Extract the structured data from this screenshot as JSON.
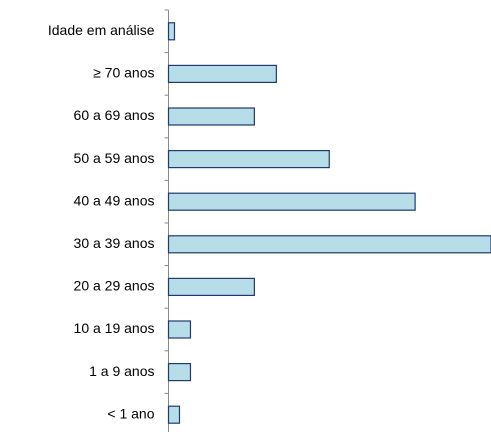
{
  "chart_data": {
    "type": "hbar",
    "categories": [
      "Idade em análise",
      "≥ 70 anos",
      "60 a 69 anos",
      "50 a 59 anos",
      "40 a 49 anos",
      "30 a 39 anos",
      "20 a 29 anos",
      "10 a 19 anos",
      "1 a 9 anos",
      "< 1 ano"
    ],
    "values": [
      6,
      108,
      86,
      161,
      247,
      323,
      86,
      22,
      22,
      11
    ],
    "color": "#b7dde8",
    "edge_color": "#1f3a6e",
    "xlim": [
      0,
      323
    ]
  }
}
